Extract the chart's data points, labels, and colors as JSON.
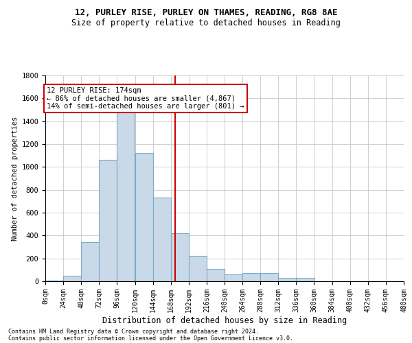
{
  "title1": "12, PURLEY RISE, PURLEY ON THAMES, READING, RG8 8AE",
  "title2": "Size of property relative to detached houses in Reading",
  "xlabel": "Distribution of detached houses by size in Reading",
  "ylabel": "Number of detached properties",
  "footnote1": "Contains HM Land Registry data © Crown copyright and database right 2024.",
  "footnote2": "Contains public sector information licensed under the Open Government Licence v3.0.",
  "annotation_title": "12 PURLEY RISE: 174sqm",
  "annotation_line1": "← 86% of detached houses are smaller (4,867)",
  "annotation_line2": "14% of semi-detached houses are larger (801) →",
  "property_size": 174,
  "bin_edges": [
    0,
    24,
    48,
    72,
    96,
    120,
    144,
    168,
    192,
    216,
    240,
    264,
    288,
    312,
    336,
    360,
    384,
    408,
    432,
    456,
    480
  ],
  "bar_heights": [
    5,
    50,
    340,
    1060,
    1480,
    1120,
    730,
    420,
    220,
    110,
    60,
    70,
    70,
    30,
    30,
    0,
    0,
    0,
    0,
    0
  ],
  "bar_color": "#c9d9e8",
  "bar_edge_color": "#7aaac8",
  "vline_color": "#cc0000",
  "annotation_box_color": "#cc0000",
  "background_color": "#ffffff",
  "grid_color": "#c8c8c8",
  "ylim": [
    0,
    1800
  ],
  "yticks": [
    0,
    200,
    400,
    600,
    800,
    1000,
    1200,
    1400,
    1600,
    1800
  ]
}
